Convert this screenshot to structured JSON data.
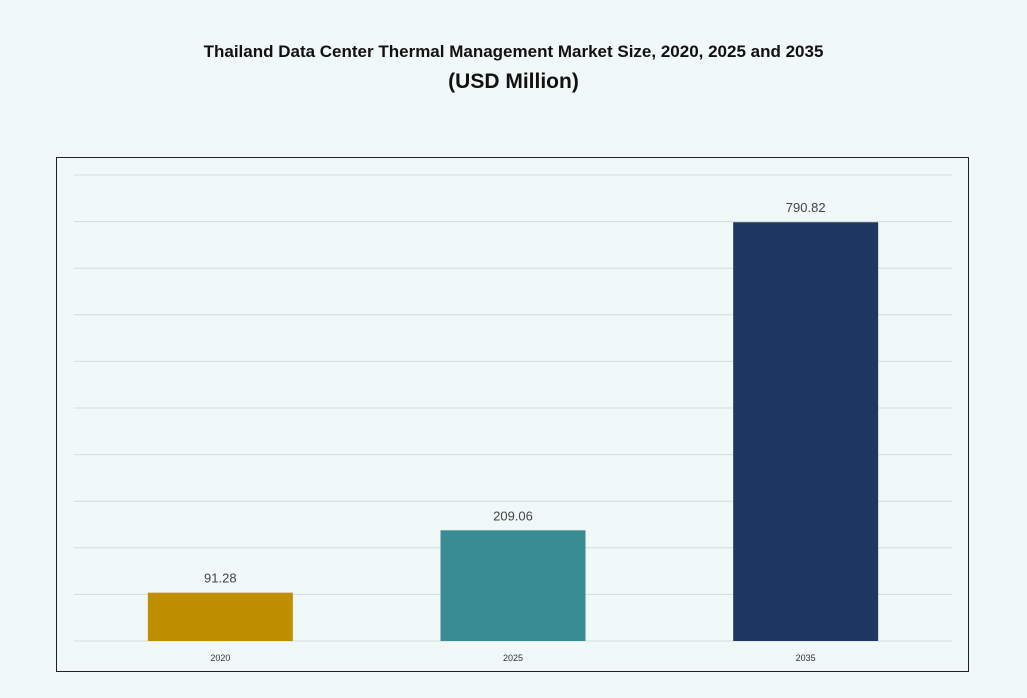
{
  "chart_data": {
    "type": "bar",
    "title": "Thailand Data Center Thermal Management Market Size, 2020, 2025 and 2035",
    "subtitle": "(USD Million)",
    "xlabel": "",
    "ylabel": "",
    "categories": [
      "2020",
      "2025",
      "2035"
    ],
    "values": [
      91.28,
      209.06,
      790.82
    ],
    "data_labels": [
      "91.28",
      "209.06",
      "790.82"
    ],
    "colors": [
      "#c08f00",
      "#3a8c94",
      "#1f3863"
    ],
    "ylim": [
      0,
      880
    ],
    "grid": true,
    "y_axis_visible": false,
    "legend": "none"
  }
}
